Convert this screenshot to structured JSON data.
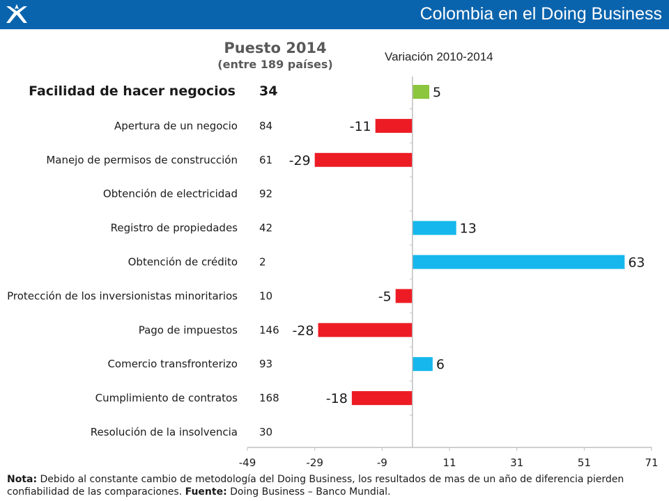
{
  "header": {
    "title": "Colombia en el Doing Business",
    "bar_color": "#0a64ad"
  },
  "column_headers": {
    "rank_title": "Puesto 2014",
    "rank_subtitle": "(entre 189 países)",
    "variation_title": "Variación 2010-2014"
  },
  "chart_data": {
    "type": "bar",
    "orientation": "horizontal",
    "categories": [
      "Facilidad de hacer negocios",
      "Apertura de un negocio",
      "Manejo de permisos de construcción",
      "Obtención de electricidad",
      "Registro de propiedades",
      "Obtención de crédito",
      "Protección de los inversionistas minoritarios",
      "Pago de impuestos",
      "Comercio transfronterizo",
      "Cumplimiento de contratos",
      "Resolución de la insolvencia"
    ],
    "ranks": [
      "34",
      "84",
      "61",
      "92",
      "42",
      "2",
      "10",
      "146",
      "93",
      "168",
      "30"
    ],
    "values": [
      5,
      -11,
      -29,
      null,
      13,
      63,
      -5,
      -28,
      6,
      -18,
      null
    ],
    "value_labels": [
      "5",
      "-11",
      "-29",
      "",
      "13",
      "63",
      "-5",
      "-28",
      "6",
      "-18",
      ""
    ],
    "xlim": [
      -49,
      71
    ],
    "x_ticks": [
      "-49",
      "-29",
      "-9",
      "11",
      "31",
      "51",
      "71"
    ],
    "grid": false,
    "colors": {
      "total": "#8cc63f",
      "positive": "#15b7ec",
      "negative": "#ed1c24",
      "axis": "#bfbfbf"
    }
  },
  "footnote": {
    "nota_label": "Nota:",
    "nota_text": " Debido al constante cambio de metodología del Doing Business, los resultados de mas de un año de diferencia pierden confiabilidad de las comparaciones. ",
    "fuente_label": "Fuente:",
    "fuente_text": " Doing Business – Banco Mundial."
  }
}
